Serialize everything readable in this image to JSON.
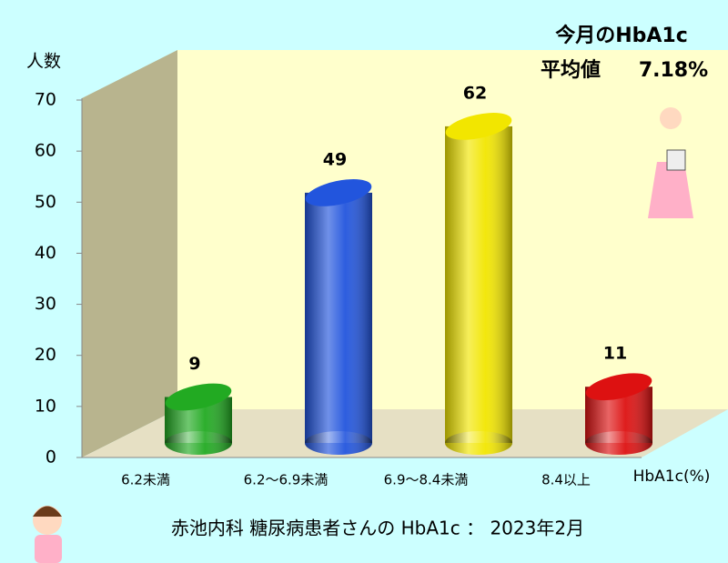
{
  "chart_data": {
    "type": "bar",
    "ylabel": "人数",
    "xlabel": "HbA1c(%)",
    "annotations": [
      "今月のHbA1c",
      "平均値",
      "7.18%"
    ],
    "caption": "赤池内科 糖尿病患者さんの HbA1c ： 2023年2月",
    "categories": [
      "6.2未満",
      "6.2～6.9未満",
      "6.9～8.4未満",
      "8.4以上"
    ],
    "values": [
      9,
      49,
      62,
      11
    ],
    "colors": [
      "#22aa22",
      "#2255dd",
      "#f2e600",
      "#dd1111"
    ],
    "ylim": [
      0,
      70
    ],
    "yticks": [
      0,
      10,
      20,
      30,
      40,
      50,
      60,
      70
    ]
  }
}
